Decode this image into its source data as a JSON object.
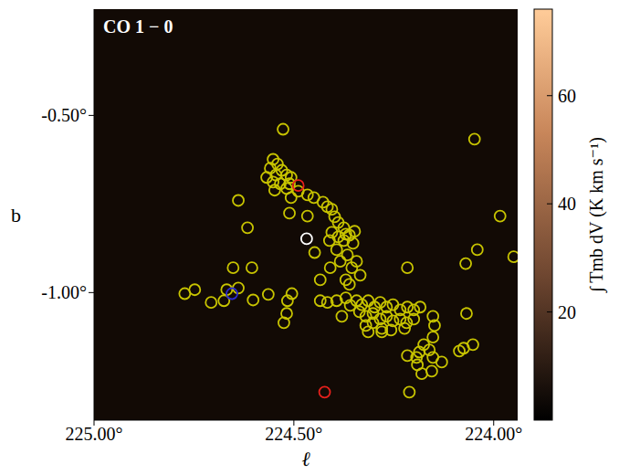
{
  "chart_data": {
    "type": "scatter",
    "title": "CO 1 − 0",
    "x_label": "ℓ",
    "y_label": "b",
    "xlim": [
      225.0,
      223.94
    ],
    "ylim": [
      -1.36,
      -0.2
    ],
    "xticks": [
      {
        "value": 225.0,
        "label": "225.00°"
      },
      {
        "value": 224.5,
        "label": "224.50°"
      },
      {
        "value": 224.0,
        "label": "224.00°"
      }
    ],
    "yticks": [
      {
        "value": -0.5,
        "label": "-0.50°"
      },
      {
        "value": -1.0,
        "label": "-1.00°"
      }
    ],
    "grid": false,
    "marker": "open_circle",
    "series": [
      {
        "color": "#c8c400",
        "x": [
          224.527,
          224.048,
          224.552,
          224.541,
          224.559,
          224.53,
          224.545,
          224.518,
          224.568,
          224.507,
          224.552,
          224.534,
          224.511,
          224.548,
          224.518,
          224.489,
          224.466,
          224.45,
          224.639,
          224.507,
          224.427,
          224.416,
          224.511,
          224.466,
          224.616,
          224.405,
          224.398,
          224.389,
          224.375,
          224.37,
          224.405,
          224.389,
          224.375,
          224.361,
          224.348,
          224.411,
          224.352,
          224.393,
          224.366,
          224.384,
          224.343,
          224.448,
          224.355,
          224.409,
          224.434,
          224.37,
          224.334,
          224.216,
          223.984,
          224.041,
          224.07,
          224.361,
          224.652,
          224.605,
          224.505,
          224.516,
          224.518,
          224.525,
          224.773,
          224.748,
          224.707,
          224.675,
          224.668,
          224.639,
          224.602,
          224.564,
          224.434,
          224.416,
          224.393,
          224.37,
          224.359,
          224.343,
          224.33,
          224.314,
          224.298,
          224.284,
          224.268,
          224.252,
          224.234,
          224.216,
          224.2,
          224.184,
          224.336,
          224.32,
          224.302,
          224.284,
          224.268,
          224.252,
          224.234,
          224.218,
          224.2,
          224.32,
          224.302,
          224.28,
          224.257,
          224.223,
          224.38,
          224.314,
          224.28,
          224.152,
          224.148,
          224.152,
          224.175,
          224.161,
          224.186,
          224.193,
          224.216,
          224.152,
          224.13,
          224.191,
          224.18,
          224.155,
          224.211,
          224.086,
          224.075,
          224.052,
          224.068,
          223.95
        ],
        "y": [
          -0.539,
          -0.567,
          -0.624,
          -0.637,
          -0.649,
          -0.655,
          -0.668,
          -0.668,
          -0.675,
          -0.675,
          -0.688,
          -0.693,
          -0.693,
          -0.711,
          -0.706,
          -0.714,
          -0.724,
          -0.732,
          -0.74,
          -0.732,
          -0.745,
          -0.758,
          -0.776,
          -0.784,
          -0.817,
          -0.765,
          -0.786,
          -0.802,
          -0.817,
          -0.835,
          -0.83,
          -0.843,
          -0.853,
          -0.838,
          -0.827,
          -0.853,
          -0.861,
          -0.879,
          -0.894,
          -0.912,
          -0.912,
          -0.887,
          -0.93,
          -0.93,
          -0.964,
          -0.964,
          -0.951,
          -0.93,
          -0.784,
          -0.879,
          -0.918,
          -0.977,
          -0.93,
          -0.93,
          -1.003,
          -1.023,
          -1.059,
          -1.085,
          -1.003,
          -0.992,
          -1.028,
          -1.023,
          -0.992,
          -0.987,
          -1.021,
          -1.005,
          -1.023,
          -1.028,
          -1.023,
          -1.015,
          -1.036,
          -1.023,
          -1.034,
          -1.023,
          -1.041,
          -1.028,
          -1.041,
          -1.034,
          -1.049,
          -1.041,
          -1.049,
          -1.041,
          -1.054,
          -1.067,
          -1.059,
          -1.075,
          -1.067,
          -1.08,
          -1.075,
          -1.085,
          -1.075,
          -1.093,
          -1.085,
          -1.101,
          -1.106,
          -1.101,
          -1.067,
          -1.111,
          -1.111,
          -1.067,
          -1.093,
          -1.126,
          -1.147,
          -1.162,
          -1.168,
          -1.183,
          -1.178,
          -1.183,
          -1.196,
          -1.204,
          -1.229,
          -1.222,
          -1.281,
          -1.165,
          -1.157,
          -1.147,
          -1.059,
          -0.899
        ]
      },
      {
        "color": "#e8201c",
        "x": [
          224.489,
          224.423
        ],
        "y": [
          -0.698,
          -1.281
        ]
      },
      {
        "color": "#ffffff",
        "x": [
          224.468
        ],
        "y": [
          -0.848
        ]
      },
      {
        "color": "#2a2ad0",
        "x": [
          224.655
        ],
        "y": [
          -1.003
        ]
      }
    ],
    "colorbar": {
      "label": "∫ Tmb dV (K km s⁻¹)",
      "range": [
        0,
        76
      ],
      "ticks": [
        20,
        40,
        60
      ]
    }
  }
}
